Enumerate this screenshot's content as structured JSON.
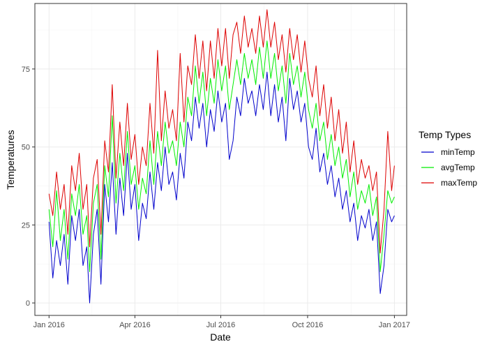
{
  "chart_data": {
    "type": "line",
    "title": "",
    "xlabel": "Date",
    "ylabel": "Temperatures",
    "x_axis": {
      "type": "date",
      "range": [
        "2015-12-17",
        "2017-01-14"
      ],
      "ticks": [
        {
          "date": "2016-01-01",
          "label": "Jan 2016"
        },
        {
          "date": "2016-04-01",
          "label": "Apr 2016"
        },
        {
          "date": "2016-07-01",
          "label": "Jul 2016"
        },
        {
          "date": "2016-10-01",
          "label": "Oct 2016"
        },
        {
          "date": "2017-01-01",
          "label": "Jan 2017"
        }
      ]
    },
    "y_axis": {
      "range": [
        -4,
        96
      ],
      "ticks": [
        0,
        25,
        50,
        75
      ]
    },
    "grid": true,
    "legend": {
      "title": "Temp Types",
      "placement": "right"
    },
    "series": [
      {
        "name": "minTemp",
        "color": "#0000cc",
        "points": [
          [
            "2016-01-01",
            26
          ],
          [
            "2016-01-05",
            8
          ],
          [
            "2016-01-09",
            20
          ],
          [
            "2016-01-13",
            12
          ],
          [
            "2016-01-17",
            22
          ],
          [
            "2016-01-21",
            6
          ],
          [
            "2016-01-25",
            28
          ],
          [
            "2016-01-29",
            20
          ],
          [
            "2016-02-02",
            30
          ],
          [
            "2016-02-06",
            12
          ],
          [
            "2016-02-10",
            18
          ],
          [
            "2016-02-13",
            0
          ],
          [
            "2016-02-17",
            22
          ],
          [
            "2016-02-21",
            30
          ],
          [
            "2016-02-25",
            6
          ],
          [
            "2016-02-29",
            38
          ],
          [
            "2016-03-04",
            26
          ],
          [
            "2016-03-08",
            45
          ],
          [
            "2016-03-12",
            22
          ],
          [
            "2016-03-16",
            40
          ],
          [
            "2016-03-20",
            28
          ],
          [
            "2016-03-24",
            48
          ],
          [
            "2016-03-28",
            30
          ],
          [
            "2016-04-01",
            38
          ],
          [
            "2016-04-05",
            20
          ],
          [
            "2016-04-09",
            32
          ],
          [
            "2016-04-13",
            27
          ],
          [
            "2016-04-17",
            42
          ],
          [
            "2016-04-21",
            30
          ],
          [
            "2016-04-25",
            45
          ],
          [
            "2016-04-29",
            36
          ],
          [
            "2016-05-03",
            50
          ],
          [
            "2016-05-07",
            38
          ],
          [
            "2016-05-11",
            42
          ],
          [
            "2016-05-15",
            33
          ],
          [
            "2016-05-19",
            48
          ],
          [
            "2016-05-23",
            40
          ],
          [
            "2016-05-27",
            58
          ],
          [
            "2016-05-31",
            52
          ],
          [
            "2016-06-04",
            66
          ],
          [
            "2016-06-08",
            56
          ],
          [
            "2016-06-12",
            64
          ],
          [
            "2016-06-16",
            50
          ],
          [
            "2016-06-20",
            62
          ],
          [
            "2016-06-24",
            55
          ],
          [
            "2016-06-28",
            68
          ],
          [
            "2016-07-02",
            58
          ],
          [
            "2016-07-06",
            64
          ],
          [
            "2016-07-10",
            46
          ],
          [
            "2016-07-14",
            52
          ],
          [
            "2016-07-18",
            66
          ],
          [
            "2016-07-22",
            60
          ],
          [
            "2016-07-26",
            72
          ],
          [
            "2016-07-30",
            64
          ],
          [
            "2016-08-03",
            68
          ],
          [
            "2016-08-07",
            60
          ],
          [
            "2016-08-11",
            70
          ],
          [
            "2016-08-15",
            62
          ],
          [
            "2016-08-19",
            74
          ],
          [
            "2016-08-23",
            60
          ],
          [
            "2016-08-27",
            70
          ],
          [
            "2016-08-31",
            58
          ],
          [
            "2016-09-04",
            66
          ],
          [
            "2016-09-08",
            52
          ],
          [
            "2016-09-12",
            72
          ],
          [
            "2016-09-16",
            62
          ],
          [
            "2016-09-20",
            68
          ],
          [
            "2016-09-24",
            58
          ],
          [
            "2016-09-28",
            64
          ],
          [
            "2016-10-02",
            50
          ],
          [
            "2016-10-06",
            46
          ],
          [
            "2016-10-10",
            56
          ],
          [
            "2016-10-14",
            42
          ],
          [
            "2016-10-18",
            48
          ],
          [
            "2016-10-22",
            38
          ],
          [
            "2016-10-26",
            44
          ],
          [
            "2016-10-30",
            34
          ],
          [
            "2016-11-03",
            40
          ],
          [
            "2016-11-07",
            30
          ],
          [
            "2016-11-11",
            36
          ],
          [
            "2016-11-15",
            26
          ],
          [
            "2016-11-19",
            32
          ],
          [
            "2016-11-23",
            20
          ],
          [
            "2016-11-27",
            28
          ],
          [
            "2016-12-01",
            24
          ],
          [
            "2016-12-05",
            30
          ],
          [
            "2016-12-09",
            20
          ],
          [
            "2016-12-13",
            26
          ],
          [
            "2016-12-17",
            3
          ],
          [
            "2016-12-21",
            12
          ],
          [
            "2016-12-25",
            30
          ],
          [
            "2016-12-29",
            26
          ],
          [
            "2017-01-01",
            28
          ]
        ]
      },
      {
        "name": "avgTemp",
        "color": "#00ee00",
        "points": [
          [
            "2016-01-01",
            30
          ],
          [
            "2016-01-05",
            18
          ],
          [
            "2016-01-09",
            36
          ],
          [
            "2016-01-13",
            20
          ],
          [
            "2016-01-17",
            30
          ],
          [
            "2016-01-21",
            14
          ],
          [
            "2016-01-25",
            35
          ],
          [
            "2016-01-29",
            28
          ],
          [
            "2016-02-02",
            38
          ],
          [
            "2016-02-06",
            22
          ],
          [
            "2016-02-10",
            28
          ],
          [
            "2016-02-13",
            10
          ],
          [
            "2016-02-17",
            32
          ],
          [
            "2016-02-21",
            38
          ],
          [
            "2016-02-25",
            14
          ],
          [
            "2016-02-29",
            44
          ],
          [
            "2016-03-04",
            34
          ],
          [
            "2016-03-08",
            60
          ],
          [
            "2016-03-12",
            32
          ],
          [
            "2016-03-16",
            48
          ],
          [
            "2016-03-20",
            36
          ],
          [
            "2016-03-24",
            55
          ],
          [
            "2016-03-28",
            38
          ],
          [
            "2016-04-01",
            44
          ],
          [
            "2016-04-05",
            30
          ],
          [
            "2016-04-09",
            40
          ],
          [
            "2016-04-13",
            35
          ],
          [
            "2016-04-17",
            52
          ],
          [
            "2016-04-21",
            38
          ],
          [
            "2016-04-25",
            55
          ],
          [
            "2016-04-29",
            44
          ],
          [
            "2016-05-03",
            58
          ],
          [
            "2016-05-07",
            48
          ],
          [
            "2016-05-11",
            52
          ],
          [
            "2016-05-15",
            44
          ],
          [
            "2016-05-19",
            58
          ],
          [
            "2016-05-23",
            50
          ],
          [
            "2016-05-27",
            66
          ],
          [
            "2016-05-31",
            60
          ],
          [
            "2016-06-04",
            76
          ],
          [
            "2016-06-08",
            64
          ],
          [
            "2016-06-12",
            74
          ],
          [
            "2016-06-16",
            60
          ],
          [
            "2016-06-20",
            72
          ],
          [
            "2016-06-24",
            64
          ],
          [
            "2016-06-28",
            78
          ],
          [
            "2016-07-02",
            68
          ],
          [
            "2016-07-06",
            76
          ],
          [
            "2016-07-10",
            62
          ],
          [
            "2016-07-14",
            70
          ],
          [
            "2016-07-18",
            78
          ],
          [
            "2016-07-22",
            70
          ],
          [
            "2016-07-26",
            80
          ],
          [
            "2016-07-30",
            72
          ],
          [
            "2016-08-03",
            78
          ],
          [
            "2016-08-07",
            70
          ],
          [
            "2016-08-11",
            82
          ],
          [
            "2016-08-15",
            72
          ],
          [
            "2016-08-19",
            84
          ],
          [
            "2016-08-23",
            72
          ],
          [
            "2016-08-27",
            80
          ],
          [
            "2016-08-31",
            68
          ],
          [
            "2016-09-04",
            76
          ],
          [
            "2016-09-08",
            64
          ],
          [
            "2016-09-12",
            80
          ],
          [
            "2016-09-16",
            70
          ],
          [
            "2016-09-20",
            76
          ],
          [
            "2016-09-24",
            66
          ],
          [
            "2016-09-28",
            74
          ],
          [
            "2016-10-02",
            62
          ],
          [
            "2016-10-06",
            56
          ],
          [
            "2016-10-10",
            64
          ],
          [
            "2016-10-14",
            52
          ],
          [
            "2016-10-18",
            58
          ],
          [
            "2016-10-22",
            46
          ],
          [
            "2016-10-26",
            54
          ],
          [
            "2016-10-30",
            44
          ],
          [
            "2016-11-03",
            50
          ],
          [
            "2016-11-07",
            40
          ],
          [
            "2016-11-11",
            46
          ],
          [
            "2016-11-15",
            34
          ],
          [
            "2016-11-19",
            42
          ],
          [
            "2016-11-23",
            30
          ],
          [
            "2016-11-27",
            36
          ],
          [
            "2016-12-01",
            32
          ],
          [
            "2016-12-05",
            38
          ],
          [
            "2016-12-09",
            28
          ],
          [
            "2016-12-13",
            34
          ],
          [
            "2016-12-17",
            10
          ],
          [
            "2016-12-21",
            22
          ],
          [
            "2016-12-25",
            36
          ],
          [
            "2016-12-29",
            32
          ],
          [
            "2017-01-01",
            34
          ]
        ]
      },
      {
        "name": "maxTemp",
        "color": "#dd0000",
        "points": [
          [
            "2016-01-01",
            35
          ],
          [
            "2016-01-05",
            28
          ],
          [
            "2016-01-09",
            42
          ],
          [
            "2016-01-13",
            30
          ],
          [
            "2016-01-17",
            38
          ],
          [
            "2016-01-21",
            22
          ],
          [
            "2016-01-25",
            44
          ],
          [
            "2016-01-29",
            36
          ],
          [
            "2016-02-02",
            48
          ],
          [
            "2016-02-06",
            30
          ],
          [
            "2016-02-10",
            38
          ],
          [
            "2016-02-13",
            18
          ],
          [
            "2016-02-17",
            40
          ],
          [
            "2016-02-21",
            46
          ],
          [
            "2016-02-25",
            22
          ],
          [
            "2016-02-29",
            52
          ],
          [
            "2016-03-04",
            42
          ],
          [
            "2016-03-08",
            70
          ],
          [
            "2016-03-12",
            40
          ],
          [
            "2016-03-16",
            58
          ],
          [
            "2016-03-20",
            44
          ],
          [
            "2016-03-24",
            64
          ],
          [
            "2016-03-28",
            46
          ],
          [
            "2016-04-01",
            54
          ],
          [
            "2016-04-05",
            38
          ],
          [
            "2016-04-09",
            50
          ],
          [
            "2016-04-13",
            44
          ],
          [
            "2016-04-17",
            64
          ],
          [
            "2016-04-21",
            48
          ],
          [
            "2016-04-25",
            81
          ],
          [
            "2016-04-29",
            52
          ],
          [
            "2016-05-03",
            68
          ],
          [
            "2016-05-07",
            56
          ],
          [
            "2016-05-11",
            62
          ],
          [
            "2016-05-15",
            52
          ],
          [
            "2016-05-19",
            80
          ],
          [
            "2016-05-23",
            58
          ],
          [
            "2016-05-27",
            76
          ],
          [
            "2016-05-31",
            70
          ],
          [
            "2016-06-04",
            86
          ],
          [
            "2016-06-08",
            72
          ],
          [
            "2016-06-12",
            84
          ],
          [
            "2016-06-16",
            68
          ],
          [
            "2016-06-20",
            84
          ],
          [
            "2016-06-24",
            72
          ],
          [
            "2016-06-28",
            88
          ],
          [
            "2016-07-02",
            76
          ],
          [
            "2016-07-06",
            88
          ],
          [
            "2016-07-10",
            72
          ],
          [
            "2016-07-14",
            86
          ],
          [
            "2016-07-18",
            90
          ],
          [
            "2016-07-22",
            80
          ],
          [
            "2016-07-26",
            92
          ],
          [
            "2016-07-30",
            82
          ],
          [
            "2016-08-03",
            88
          ],
          [
            "2016-08-07",
            80
          ],
          [
            "2016-08-11",
            92
          ],
          [
            "2016-08-15",
            82
          ],
          [
            "2016-08-19",
            94
          ],
          [
            "2016-08-23",
            82
          ],
          [
            "2016-08-27",
            90
          ],
          [
            "2016-08-31",
            78
          ],
          [
            "2016-09-04",
            86
          ],
          [
            "2016-09-08",
            74
          ],
          [
            "2016-09-12",
            88
          ],
          [
            "2016-09-16",
            78
          ],
          [
            "2016-09-20",
            86
          ],
          [
            "2016-09-24",
            74
          ],
          [
            "2016-09-28",
            84
          ],
          [
            "2016-10-02",
            72
          ],
          [
            "2016-10-06",
            66
          ],
          [
            "2016-10-10",
            76
          ],
          [
            "2016-10-14",
            60
          ],
          [
            "2016-10-18",
            70
          ],
          [
            "2016-10-22",
            56
          ],
          [
            "2016-10-26",
            66
          ],
          [
            "2016-10-30",
            52
          ],
          [
            "2016-11-03",
            62
          ],
          [
            "2016-11-07",
            48
          ],
          [
            "2016-11-11",
            58
          ],
          [
            "2016-11-15",
            42
          ],
          [
            "2016-11-19",
            52
          ],
          [
            "2016-11-23",
            38
          ],
          [
            "2016-11-27",
            46
          ],
          [
            "2016-12-01",
            40
          ],
          [
            "2016-12-05",
            44
          ],
          [
            "2016-12-09",
            36
          ],
          [
            "2016-12-13",
            42
          ],
          [
            "2016-12-17",
            16
          ],
          [
            "2016-12-21",
            30
          ],
          [
            "2016-12-25",
            55
          ],
          [
            "2016-12-29",
            36
          ],
          [
            "2017-01-01",
            44
          ]
        ]
      }
    ]
  }
}
